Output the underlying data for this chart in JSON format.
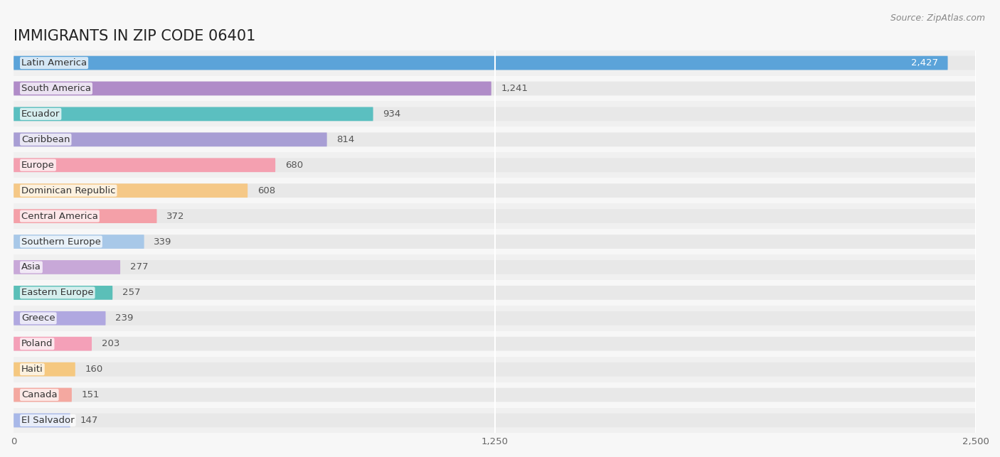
{
  "title": "IMMIGRANTS IN ZIP CODE 06401",
  "source": "Source: ZipAtlas.com",
  "categories": [
    "Latin America",
    "South America",
    "Ecuador",
    "Caribbean",
    "Europe",
    "Dominican Republic",
    "Central America",
    "Southern Europe",
    "Asia",
    "Eastern Europe",
    "Greece",
    "Poland",
    "Haiti",
    "Canada",
    "El Salvador"
  ],
  "values": [
    2427,
    1241,
    934,
    814,
    680,
    608,
    372,
    339,
    277,
    257,
    239,
    203,
    160,
    151,
    147
  ],
  "bar_colors": [
    "#5BA3D9",
    "#B08CC8",
    "#5BBFC0",
    "#A89ED4",
    "#F4A0B0",
    "#F5C887",
    "#F4A0A8",
    "#A8C8E8",
    "#C8A8D8",
    "#5BBFB8",
    "#B0A8E0",
    "#F4A0B8",
    "#F5C880",
    "#F4A8A0",
    "#A8B8E8"
  ],
  "xlim": [
    0,
    2500
  ],
  "xticks": [
    0,
    1250,
    2500
  ],
  "background_color": "#f7f7f7",
  "bar_bg_color": "#e8e8e8",
  "row_bg_colors": [
    "#f0f0f0",
    "#f7f7f7"
  ],
  "title_fontsize": 15,
  "label_fontsize": 9.5,
  "value_fontsize": 9.5
}
